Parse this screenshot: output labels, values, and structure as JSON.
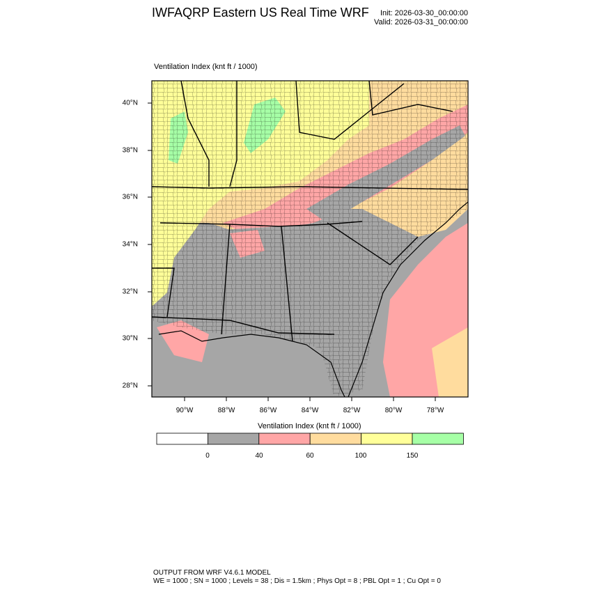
{
  "header": {
    "title": "IWFAQRP Eastern US Real Time WRF",
    "init": "Init: 2026-03-30_00:00:00",
    "valid": "Valid: 2026-03-31_00:00:00"
  },
  "field_label": "Ventilation Index   (knt ft / 1000)",
  "map": {
    "lat_ticks": [
      "40°N",
      "38°N",
      "36°N",
      "34°N",
      "32°N",
      "30°N",
      "28°N"
    ],
    "lon_ticks": [
      "90°W",
      "88°W",
      "86°W",
      "84°W",
      "82°W",
      "80°W",
      "78°W"
    ]
  },
  "colorbar": {
    "title": "Ventilation Index  (knt ft / 1000)",
    "bins": [
      {
        "color": "#ffffff"
      },
      {
        "color": "#a6a6a6"
      },
      {
        "color": "#ffa6a6"
      },
      {
        "color": "#ffdc9e"
      },
      {
        "color": "#ffff99"
      },
      {
        "color": "#a6ffa6"
      }
    ],
    "tick_labels": [
      "0",
      "40",
      "60",
      "100",
      "150"
    ]
  },
  "footer": {
    "line1": "OUTPUT FROM WRF V4.6.1 MODEL",
    "line2": "WE = 1000 ; SN = 1000 ; Levels = 38 ; Dis = 1.5km ; Phys Opt = 8 ; PBL Opt = 1 ; Cu Opt = 0"
  }
}
